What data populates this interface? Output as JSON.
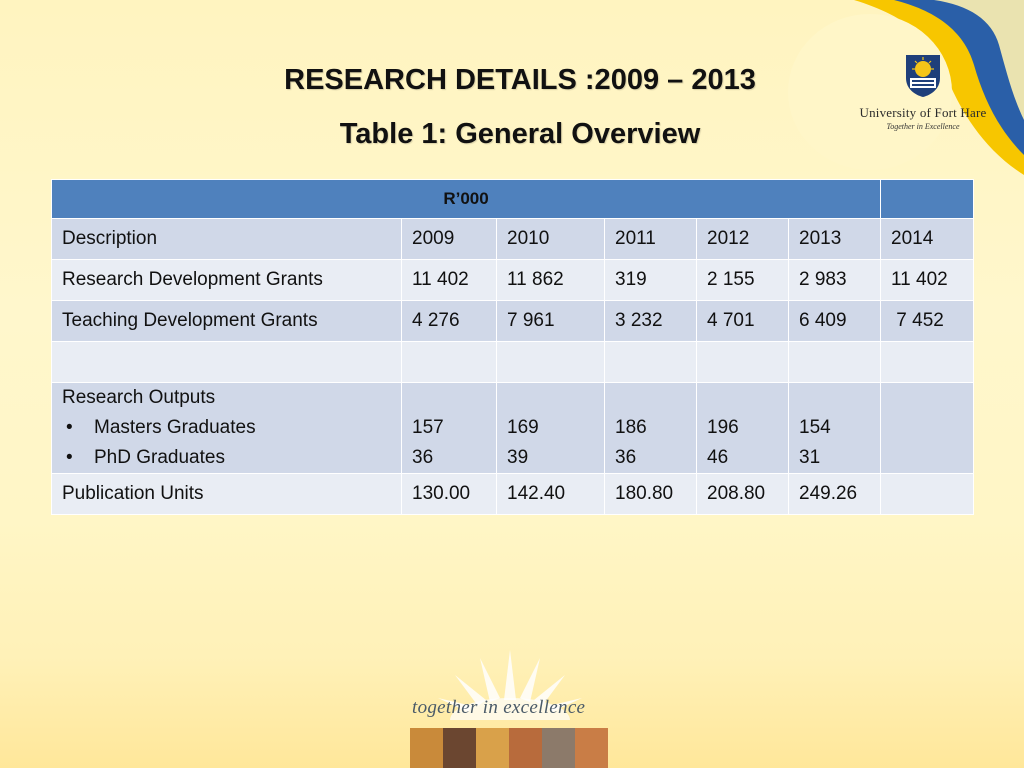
{
  "header": {
    "title_line1": "RESEARCH DETAILS :2009 – 2013",
    "title_line2": "Table 1: General Overview"
  },
  "logo": {
    "name": "University of Fort Hare",
    "motto": "Together in Excellence"
  },
  "table": {
    "unit_header": "R’000",
    "columns": [
      "Description",
      "2009",
      "2010",
      "2011",
      "2012",
      "2013",
      "2014"
    ],
    "rows": [
      {
        "description": "Research Development Grants",
        "values": [
          "11 402",
          "11 862",
          "319",
          "2 155",
          "2 983",
          "11 402"
        ]
      },
      {
        "description": "Teaching Development Grants",
        "values": [
          "4 276",
          "7 961",
          "3 232",
          "4 701",
          "6 409",
          " 7 452"
        ]
      }
    ],
    "outputs": {
      "label": "Research Outputs",
      "masters_label": "Masters Graduates",
      "phd_label": "PhD Graduates",
      "bullet": "•",
      "masters": [
        "157",
        "169",
        "186",
        "196",
        "154",
        ""
      ],
      "phd": [
        "36",
        "39",
        "36",
        "46",
        "31",
        ""
      ]
    },
    "publication": {
      "label": "Publication Units",
      "values": [
        "130.00",
        "142.40",
        "180.80",
        "208.80",
        "249.26",
        ""
      ]
    }
  },
  "footer": {
    "tagline": "together in excellence"
  },
  "colors": {
    "header_blue": "#4f81bd",
    "row_dark": "#d0d8e8",
    "row_light": "#e9edf4",
    "background": "#fff6c8"
  }
}
